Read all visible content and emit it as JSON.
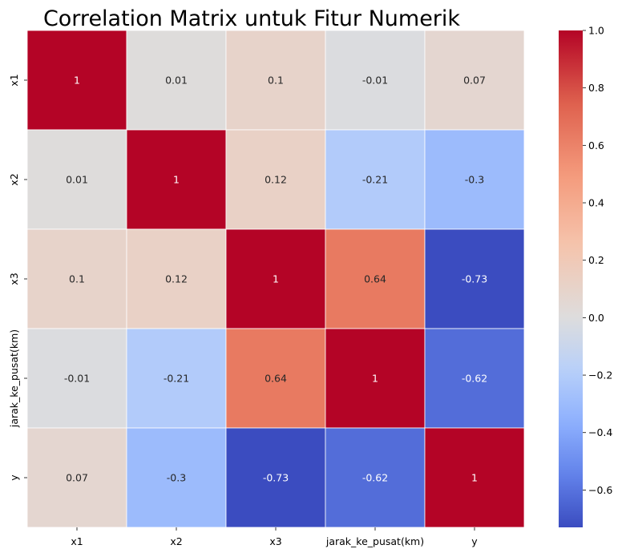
{
  "chart_data": {
    "type": "heatmap",
    "title": "Correlation Matrix untuk Fitur Numerik",
    "xlabel": "",
    "ylabel": "",
    "x_categories": [
      "x1",
      "x2",
      "x3",
      "jarak_ke_pusat(km)",
      "y"
    ],
    "y_categories": [
      "x1",
      "x2",
      "x3",
      "jarak_ke_pusat(km)",
      "y"
    ],
    "values": [
      [
        1,
        0.01,
        0.1,
        -0.01,
        0.07
      ],
      [
        0.01,
        1,
        0.12,
        -0.21,
        -0.3
      ],
      [
        0.1,
        0.12,
        1,
        0.64,
        -0.73
      ],
      [
        -0.01,
        -0.21,
        0.64,
        1,
        -0.62
      ],
      [
        0.07,
        -0.3,
        -0.73,
        -0.62,
        1
      ]
    ],
    "annotations": [
      [
        "1",
        "0.01",
        "0.1",
        "-0.01",
        "0.07"
      ],
      [
        "0.01",
        "1",
        "0.12",
        "-0.21",
        "-0.3"
      ],
      [
        "0.1",
        "0.12",
        "1",
        "0.64",
        "-0.73"
      ],
      [
        "-0.01",
        "-0.21",
        "0.64",
        "1",
        "-0.62"
      ],
      [
        "0.07",
        "-0.3",
        "-0.73",
        "-0.62",
        "1"
      ]
    ],
    "colormap": "coolwarm",
    "vmin": -0.73,
    "vmax": 1.0,
    "colorbar": {
      "ticks": [
        1.0,
        0.8,
        0.6,
        0.4,
        0.2,
        0.0,
        -0.2,
        -0.4,
        -0.6
      ],
      "tick_labels": [
        "1.0",
        "0.8",
        "0.6",
        "0.4",
        "0.2",
        "0.0",
        "−0.2",
        "−0.4",
        "−0.6"
      ]
    },
    "grid_lines": true,
    "grid_color": "#ffffff"
  }
}
